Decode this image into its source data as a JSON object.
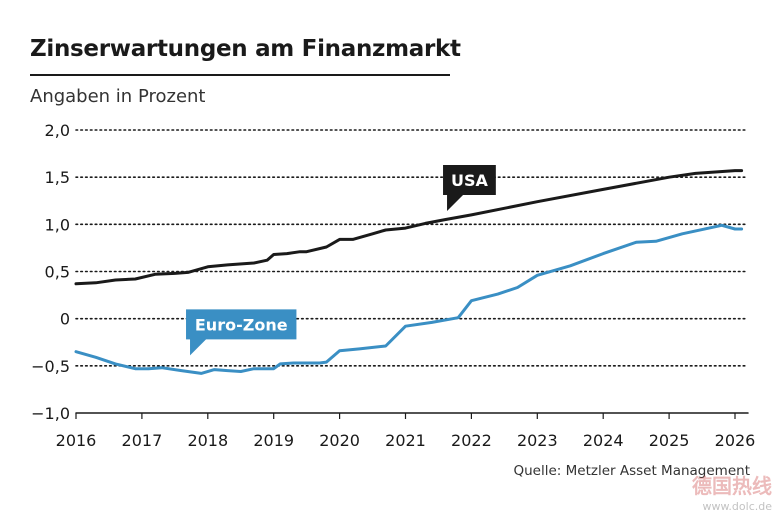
{
  "header": {
    "title": "Zinserwartungen am Finanzmarkt",
    "subtitle": "Angaben in Prozent"
  },
  "footer": {
    "source": "Quelle: Metzler Asset Management",
    "watermark": "德国热线",
    "watermark_url": "www.dolc.de"
  },
  "chart_data": {
    "type": "line",
    "title": "Zinserwartungen am Finanzmarkt",
    "subtitle": "Angaben in Prozent",
    "xlabel": "",
    "ylabel": "",
    "xlim": [
      2016,
      2026.2
    ],
    "ylim": [
      -1.0,
      2.0
    ],
    "grid": true,
    "x_ticks": [
      2016,
      2017,
      2018,
      2019,
      2020,
      2021,
      2022,
      2023,
      2024,
      2025,
      2026
    ],
    "x_tick_labels": [
      "2016",
      "2017",
      "2018",
      "2019",
      "2020",
      "2021",
      "2022",
      "2023",
      "2024",
      "2025",
      "2026"
    ],
    "y_ticks": [
      -1.0,
      -0.5,
      0,
      0.5,
      1.0,
      1.5,
      2.0
    ],
    "y_tick_labels": [
      "−1,0",
      "−0,5",
      "0",
      "0,5",
      "1,0",
      "1,5",
      "2,0"
    ],
    "series": [
      {
        "name": "USA",
        "color": "#1a1a1a",
        "label_at": [
          2021.6,
          1.47
        ],
        "label_text_color": "#ffffff",
        "points": [
          [
            2016,
            0.37
          ],
          [
            2016.3,
            0.38
          ],
          [
            2016.6,
            0.41
          ],
          [
            2016.9,
            0.42
          ],
          [
            2017.2,
            0.47
          ],
          [
            2017.5,
            0.48
          ],
          [
            2017.7,
            0.49
          ],
          [
            2018.0,
            0.55
          ],
          [
            2018.3,
            0.57
          ],
          [
            2018.7,
            0.59
          ],
          [
            2018.9,
            0.62
          ],
          [
            2019.0,
            0.68
          ],
          [
            2019.2,
            0.69
          ],
          [
            2019.4,
            0.71
          ],
          [
            2019.5,
            0.71
          ],
          [
            2019.8,
            0.76
          ],
          [
            2020.0,
            0.84
          ],
          [
            2020.2,
            0.84
          ],
          [
            2020.5,
            0.9
          ],
          [
            2020.7,
            0.94
          ],
          [
            2021.0,
            0.96
          ],
          [
            2021.3,
            1.01
          ],
          [
            2021.6,
            1.05
          ],
          [
            2022.0,
            1.1
          ],
          [
            2023.0,
            1.24
          ],
          [
            2024.0,
            1.37
          ],
          [
            2025.0,
            1.5
          ],
          [
            2025.4,
            1.54
          ],
          [
            2026.0,
            1.57
          ],
          [
            2026.1,
            1.57
          ]
        ]
      },
      {
        "name": "Euro-Zone",
        "color": "#3a8fc4",
        "label_at": [
          2017.7,
          -0.06
        ],
        "label_text_color": "#ffffff",
        "points": [
          [
            2016,
            -0.35
          ],
          [
            2016.3,
            -0.41
          ],
          [
            2016.6,
            -0.48
          ],
          [
            2016.9,
            -0.53
          ],
          [
            2017.1,
            -0.53
          ],
          [
            2017.3,
            -0.52
          ],
          [
            2017.6,
            -0.55
          ],
          [
            2017.9,
            -0.58
          ],
          [
            2018.1,
            -0.54
          ],
          [
            2018.3,
            -0.55
          ],
          [
            2018.5,
            -0.56
          ],
          [
            2018.7,
            -0.53
          ],
          [
            2018.9,
            -0.53
          ],
          [
            2019.0,
            -0.53
          ],
          [
            2019.1,
            -0.48
          ],
          [
            2019.3,
            -0.47
          ],
          [
            2019.5,
            -0.47
          ],
          [
            2019.7,
            -0.47
          ],
          [
            2019.8,
            -0.46
          ],
          [
            2020.0,
            -0.34
          ],
          [
            2020.3,
            -0.32
          ],
          [
            2020.7,
            -0.29
          ],
          [
            2021.0,
            -0.08
          ],
          [
            2021.4,
            -0.04
          ],
          [
            2021.8,
            0.01
          ],
          [
            2022.0,
            0.19
          ],
          [
            2022.4,
            0.26
          ],
          [
            2022.7,
            0.33
          ],
          [
            2023.0,
            0.46
          ],
          [
            2023.5,
            0.56
          ],
          [
            2024.0,
            0.69
          ],
          [
            2024.5,
            0.81
          ],
          [
            2024.8,
            0.82
          ],
          [
            2025.2,
            0.9
          ],
          [
            2025.8,
            0.99
          ],
          [
            2026.0,
            0.95
          ],
          [
            2026.1,
            0.95
          ]
        ]
      }
    ]
  }
}
